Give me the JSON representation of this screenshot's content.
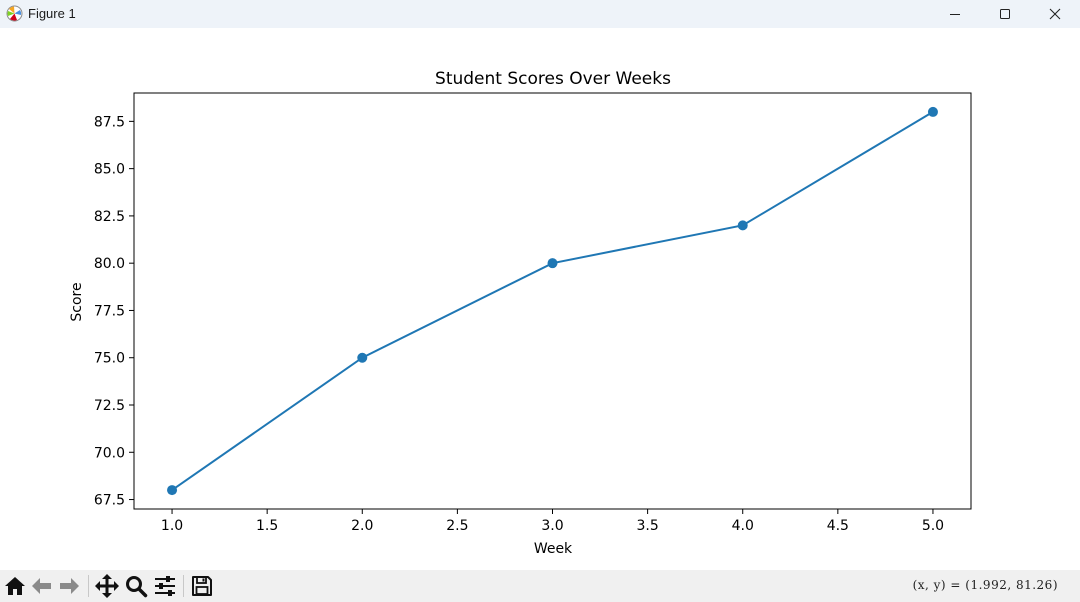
{
  "window": {
    "title": "Figure 1",
    "icon": "matplotlib-icon"
  },
  "toolbar": {
    "tools": [
      {
        "name": "home-icon"
      },
      {
        "name": "back-arrow-icon"
      },
      {
        "name": "forward-arrow-icon"
      },
      {
        "name": "pan-move-icon"
      },
      {
        "name": "zoom-magnifier-icon"
      },
      {
        "name": "subplots-sliders-icon"
      },
      {
        "name": "save-floppy-icon"
      }
    ],
    "coords_readout": "(x,  y)  =  (1.992,  81.26)"
  },
  "chart_data": {
    "type": "line",
    "title": "Student Scores Over Weeks",
    "xlabel": "Week",
    "ylabel": "Score",
    "x": [
      1,
      2,
      3,
      4,
      5
    ],
    "series": [
      {
        "values": [
          68,
          75,
          80,
          82,
          88
        ],
        "color": "#1f77b4",
        "marker": "circle"
      }
    ],
    "xlim": [
      0.8,
      5.2
    ],
    "ylim": [
      67,
      89
    ],
    "xticks": [
      "1.0",
      "1.5",
      "2.0",
      "2.5",
      "3.0",
      "3.5",
      "4.0",
      "4.5",
      "5.0"
    ],
    "yticks": [
      "67.5",
      "70.0",
      "72.5",
      "75.0",
      "77.5",
      "80.0",
      "82.5",
      "85.0",
      "87.5"
    ],
    "grid": false,
    "legend": "none"
  }
}
